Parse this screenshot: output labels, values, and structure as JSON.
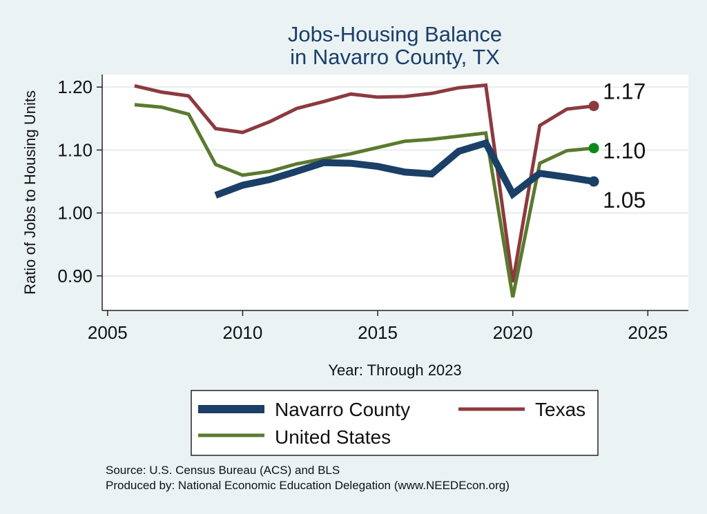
{
  "chart_data": {
    "type": "line",
    "title_line1": "Jobs-Housing Balance",
    "title_line2": "in Navarro County, TX",
    "xlabel": "Year: Through 2023",
    "ylabel": "Ratio of Jobs to Housing Units",
    "xlim": [
      2004.8,
      2026.5
    ],
    "ylim": [
      0.845,
      1.22
    ],
    "x_ticks": [
      2005,
      2010,
      2015,
      2020,
      2025
    ],
    "x_tick_labels": [
      "2005",
      "2010",
      "2015",
      "2020",
      "2025"
    ],
    "y_ticks": [
      0.9,
      1.0,
      1.1,
      1.2
    ],
    "y_tick_labels": [
      "0.90",
      "1.00",
      "1.10",
      "1.20"
    ],
    "series": [
      {
        "name": "Texas",
        "color": "#8c3a3f",
        "x": [
          2006,
          2007,
          2008,
          2009,
          2010,
          2011,
          2012,
          2013,
          2014,
          2015,
          2016,
          2017,
          2018,
          2019,
          2020,
          2021,
          2022,
          2023
        ],
        "values": [
          1.202,
          1.192,
          1.186,
          1.134,
          1.128,
          1.145,
          1.166,
          1.177,
          1.189,
          1.184,
          1.185,
          1.19,
          1.199,
          1.203,
          0.89,
          1.139,
          1.165,
          1.17
        ],
        "end_label": "1.17"
      },
      {
        "name": "United States",
        "color": "#5a7a2e",
        "x": [
          2006,
          2007,
          2008,
          2009,
          2010,
          2011,
          2012,
          2013,
          2014,
          2015,
          2016,
          2017,
          2018,
          2019,
          2020,
          2021,
          2022,
          2023
        ],
        "values": [
          1.172,
          1.168,
          1.157,
          1.077,
          1.06,
          1.066,
          1.078,
          1.086,
          1.094,
          1.104,
          1.114,
          1.117,
          1.122,
          1.127,
          0.866,
          1.079,
          1.099,
          1.103
        ],
        "end_label": "1.10"
      },
      {
        "name": "Navarro County",
        "color": "#1b3f66",
        "x": [
          2009,
          2010,
          2011,
          2012,
          2013,
          2014,
          2015,
          2016,
          2017,
          2018,
          2019,
          2020,
          2021,
          2022,
          2023
        ],
        "values": [
          1.028,
          1.044,
          1.053,
          1.066,
          1.08,
          1.079,
          1.074,
          1.065,
          1.062,
          1.098,
          1.111,
          1.03,
          1.063,
          1.057,
          1.05
        ],
        "end_label": "1.05"
      }
    ],
    "legend": [
      {
        "label": "Navarro County",
        "color": "#1b3f66"
      },
      {
        "label": "Texas",
        "color": "#8c3a3f"
      },
      {
        "label": "United States",
        "color": "#5a7a2e"
      }
    ],
    "marker_colors": {
      "Texas": "#8c3a3f",
      "United States": "#0b8a1a",
      "Navarro County": "#1b3f66"
    },
    "grid": true,
    "legend_position": "bottom"
  },
  "source_line1": "Source: U.S. Census Bureau (ACS) and BLS",
  "source_line2": "Produced by: National Economic Education Delegation (www.NEEDEcon.org)"
}
